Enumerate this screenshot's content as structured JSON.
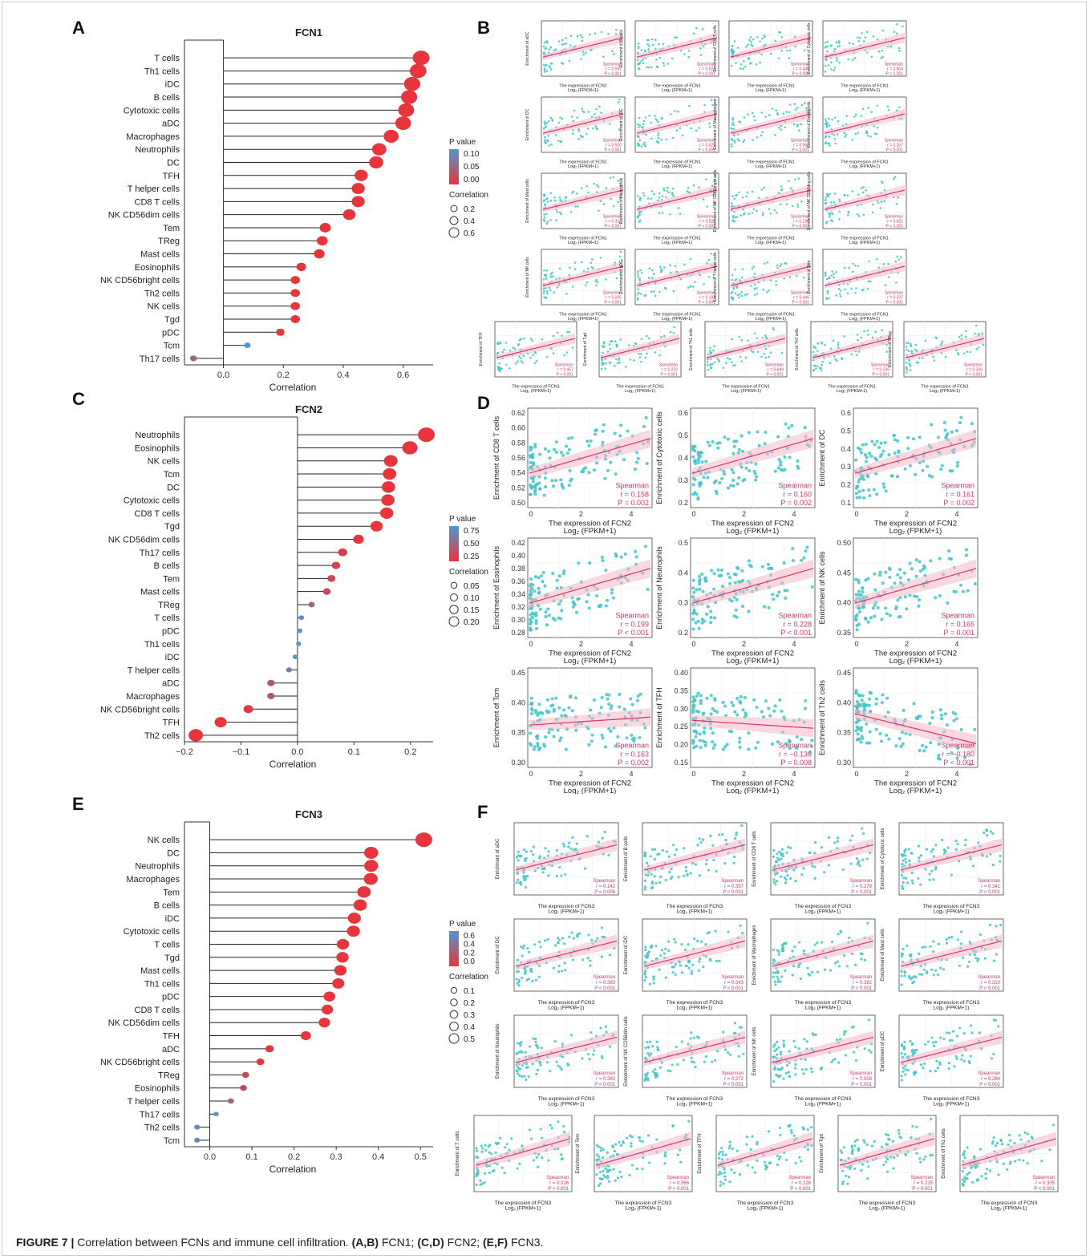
{
  "figure": {
    "caption_label": "FIGURE 7 |",
    "caption_text": "Correlation between FCNs and immune cell infiltration.",
    "caption_parts": [
      {
        "bold": "(A,B)",
        "text": " FCN1; "
      },
      {
        "bold": "(C,D)",
        "text": " FCN2; "
      },
      {
        "bold": "(E,F)",
        "text": " FCN3."
      }
    ]
  },
  "panel_letters": {
    "A": "A",
    "B": "B",
    "C": "C",
    "D": "D",
    "E": "E",
    "F": "F"
  },
  "colors": {
    "low_p": "#e8343a",
    "high_p": "#4f97d0",
    "mid_p": "#9a7e9e",
    "scatter_point": "#39c5c8",
    "fit_line": "#d6336c",
    "band": "#f3b8c8",
    "stat_text": "#d6336c"
  },
  "chart_data": [
    {
      "id": "A",
      "type": "lollipop",
      "title": "FCN1",
      "xlabel": "Correlation",
      "xlim": [
        -0.13,
        0.7
      ],
      "xticks": [
        0.0,
        0.2,
        0.4,
        0.6
      ],
      "xtick_labels": [
        "0.0",
        "0.2",
        "0.4",
        "0.6"
      ],
      "legend": {
        "p_title": "P value",
        "p_ticks": [
          "0.10",
          "0.05",
          "0.00"
        ],
        "size_title": "Correlation",
        "size_ticks": [
          "0.2",
          "0.4",
          "0.6"
        ]
      },
      "categories": [
        "T cells",
        "Th1 cells",
        "iDC",
        "B cells",
        "Cytotoxic cells",
        "aDC",
        "Macrophages",
        "Neutrophils",
        "DC",
        "TFH",
        "T helper cells",
        "CD8 T cells",
        "NK CD56dim cells",
        "Tem",
        "TReg",
        "Mast cells",
        "Eosinophils",
        "NK CD56bright cells",
        "Th2 cells",
        "NK cells",
        "Tgd",
        "pDC",
        "Tcm",
        "Th17 cells"
      ],
      "values": [
        0.66,
        0.65,
        0.63,
        0.62,
        0.61,
        0.6,
        0.56,
        0.52,
        0.51,
        0.46,
        0.45,
        0.45,
        0.42,
        0.34,
        0.33,
        0.32,
        0.26,
        0.24,
        0.24,
        0.24,
        0.24,
        0.19,
        0.08,
        -0.1
      ],
      "pvalues": [
        0,
        0,
        0,
        0,
        0,
        0,
        0,
        0,
        0,
        0,
        0,
        0,
        0,
        0,
        0,
        0,
        0,
        0,
        0,
        0,
        0,
        0,
        0.1,
        0.05
      ]
    },
    {
      "id": "C",
      "type": "lollipop",
      "title": "FCN2",
      "xlabel": "Correlation",
      "xlim": [
        -0.2,
        0.24
      ],
      "xticks": [
        -0.2,
        -0.1,
        0.0,
        0.1,
        0.2
      ],
      "xtick_labels": [
        "−0.2",
        "−0.1",
        "0.0",
        "0.1",
        "0.2"
      ],
      "legend": {
        "p_title": "P value",
        "p_ticks": [
          "0.75",
          "0.50",
          "0.25"
        ],
        "size_title": "Correlation",
        "size_ticks": [
          "0.05",
          "0.10",
          "0.15",
          "0.20"
        ]
      },
      "categories": [
        "Neutrophils",
        "Eosinophils",
        "NK cells",
        "Tcm",
        "DC",
        "Cytotoxic cells",
        "CD8 T cells",
        "Tgd",
        "NK CD56dim cells",
        "Th17 cells",
        "B cells",
        "Tem",
        "Mast cells",
        "TReg",
        "T cells",
        "pDC",
        "Th1 cells",
        "iDC",
        "T helper cells",
        "aDC",
        "Macrophages",
        "NK CD56bright cells",
        "TFH",
        "Th2 cells"
      ],
      "values": [
        0.228,
        0.199,
        0.165,
        0.163,
        0.161,
        0.16,
        0.158,
        0.14,
        0.108,
        0.08,
        0.068,
        0.06,
        0.052,
        0.025,
        0.007,
        0.004,
        0.002,
        -0.004,
        -0.015,
        -0.047,
        -0.047,
        -0.087,
        -0.136,
        -0.18
      ],
      "pvalues": [
        0,
        0,
        0.001,
        0.002,
        0.002,
        0.002,
        0.002,
        0.005,
        0.02,
        0.1,
        0.15,
        0.2,
        0.22,
        0.5,
        0.85,
        0.9,
        0.95,
        0.9,
        0.7,
        0.3,
        0.3,
        0.05,
        0.008,
        0
      ]
    },
    {
      "id": "E",
      "type": "lollipop",
      "title": "FCN3",
      "xlabel": "Correlation",
      "xlim": [
        -0.06,
        0.53
      ],
      "xticks": [
        0.0,
        0.1,
        0.2,
        0.3,
        0.4,
        0.5
      ],
      "xtick_labels": [
        "0.0",
        "0.1",
        "0.2",
        "0.3",
        "0.4",
        "0.5"
      ],
      "legend": {
        "p_title": "P value",
        "p_ticks": [
          "0.6",
          "0.4",
          "0.2",
          "0.0"
        ],
        "size_title": "Correlation",
        "size_ticks": [
          "0.1",
          "0.2",
          "0.3",
          "0.4",
          "0.5"
        ]
      },
      "categories": [
        "NK cells",
        "DC",
        "Neutrophils",
        "Macrophages",
        "Tem",
        "B cells",
        "iDC",
        "Cytotoxic cells",
        "T cells",
        "Tgd",
        "Mast cells",
        "Th1 cells",
        "pDC",
        "CD8 T cells",
        "NK CD56dim cells",
        "TFH",
        "aDC",
        "NK CD56bright cells",
        "TReg",
        "Eosinophils",
        "T helper cells",
        "Th17 cells",
        "Th2 cells",
        "Tcm"
      ],
      "values": [
        0.508,
        0.383,
        0.383,
        0.382,
        0.366,
        0.357,
        0.343,
        0.341,
        0.316,
        0.315,
        0.31,
        0.305,
        0.284,
        0.279,
        0.272,
        0.228,
        0.142,
        0.12,
        0.085,
        0.08,
        0.05,
        0.015,
        -0.03,
        -0.03
      ],
      "pvalues": [
        0,
        0,
        0,
        0,
        0,
        0,
        0,
        0,
        0,
        0,
        0,
        0,
        0,
        0,
        0,
        0,
        0.006,
        0.02,
        0.1,
        0.15,
        0.3,
        0.6,
        0.5,
        0.5
      ]
    },
    {
      "id": "B",
      "type": "scatter",
      "gene": "FCN1",
      "xlabel": "The expression of FCN1",
      "xlabel_sub": "Log₂ (FPKM+1)",
      "stat_title": "Spearman",
      "plots": [
        {
          "ylabel": "Enrichment of aDC",
          "r": "r = 0.592",
          "p": "P < 0.001"
        },
        {
          "ylabel": "Enrichment of B cells",
          "r": "r = 0.623",
          "p": "P < 0.001"
        },
        {
          "ylabel": "Enrichment of CD8 T cells",
          "r": "r = 0.445",
          "p": "P < 0.001"
        },
        {
          "ylabel": "Enrichment of Cytotoxic cells",
          "r": "r = 0.604",
          "p": "P < 0.001"
        },
        {
          "ylabel": "Enrichment of DC",
          "r": "r = 0.520",
          "p": "P < 0.001"
        },
        {
          "ylabel": "Enrichment of iDC",
          "r": "r = 0.625",
          "p": "P < 0.001"
        },
        {
          "ylabel": "Enrichment of Macrophages",
          "r": "r = 0.560",
          "p": "P < 0.001"
        },
        {
          "ylabel": "Enrichment of Eosinophils",
          "r": "r = 0.257",
          "p": "P < 0.001"
        },
        {
          "ylabel": "Enrichment of Mast cells",
          "r": "r = 0.316",
          "p": "P < 0.001"
        },
        {
          "ylabel": "Enrichment of Neutrophils",
          "r": "r = 0.526",
          "p": "P < 0.001"
        },
        {
          "ylabel": "Enrichment of NK CD56bright cells",
          "r": "r = 0.238",
          "p": "P < 0.001"
        },
        {
          "ylabel": "Enrichment of NK CD56dim cells",
          "r": "r = 0.421",
          "p": "P < 0.001"
        },
        {
          "ylabel": "Enrichment of NK cells",
          "r": "r = 0.235",
          "p": "P < 0.001"
        },
        {
          "ylabel": "Enrichment of pDC",
          "r": "r = 0.184",
          "p": "P < 0.001"
        },
        {
          "ylabel": "Enrichment of T helper cells",
          "r": "r = 0.446",
          "p": "P < 0.001"
        },
        {
          "ylabel": "Enrichment of Tem",
          "r": "r = 0.337",
          "p": "P < 0.001"
        },
        {
          "ylabel": "Enrichment of TFH",
          "r": "r = 0.457",
          "p": "P < 0.001"
        },
        {
          "ylabel": "Enrichment of Tgd",
          "r": "r = 0.232",
          "p": "P < 0.001"
        },
        {
          "ylabel": "Enrichment of Th1 cells",
          "r": "r = 0.649",
          "p": "P < 0.001"
        },
        {
          "ylabel": "Enrichment of Th2 cells",
          "r": "r = 0.236",
          "p": "P < 0.001"
        },
        {
          "ylabel": "Enrichment of TReg",
          "r": "r = 0.326",
          "p": "P < 0.001"
        }
      ]
    },
    {
      "id": "D",
      "type": "scatter",
      "gene": "FCN2",
      "xlabel": "The expression of FCN2",
      "xlabel_sub": "Log₂ (FPKM+1)",
      "stat_title": "Spearman",
      "plots": [
        {
          "ylabel": "Enrichment of CD8 T cells",
          "r": "r = 0.158",
          "p": "P = 0.002",
          "yticks": [
            "0.62",
            "0.60",
            "0.58",
            "0.56",
            "0.54",
            "0.52",
            "0.50"
          ],
          "slope": "up"
        },
        {
          "ylabel": "Enrichment of Cytotoxic cells",
          "r": "r = 0.160",
          "p": "P = 0.002",
          "yticks": [
            "0.6",
            "0.5",
            "0.4",
            "0.3",
            "0.2"
          ],
          "slope": "up"
        },
        {
          "ylabel": "Enrichment of DC",
          "r": "r = 0.161",
          "p": "P = 0.002",
          "yticks": [
            "0.6",
            "0.5",
            "0.4",
            "0.3",
            "0.2",
            "0.1"
          ],
          "slope": "up"
        },
        {
          "ylabel": "Enrichment of Eosinophils",
          "r": "r = 0.199",
          "p": "P < 0.001",
          "yticks": [
            "0.42",
            "0.40",
            "0.38",
            "0.36",
            "0.34",
            "0.32",
            "0.30",
            "0.28"
          ],
          "slope": "up"
        },
        {
          "ylabel": "Enrichment of Neutrophils",
          "r": "r = 0.228",
          "p": "P < 0.001",
          "yticks": [
            "0.5",
            "0.4",
            "0.3",
            "0.2"
          ],
          "slope": "up"
        },
        {
          "ylabel": "Enrichment of NK cells",
          "r": "r = 0.165",
          "p": "P = 0.001",
          "yticks": [
            "0.50",
            "0.45",
            "0.40",
            "0.35"
          ],
          "slope": "up"
        },
        {
          "ylabel": "Enrichment of Tcm",
          "r": "r = 0.163",
          "p": "P = 0.002",
          "yticks": [
            "0.45",
            "0.40",
            "0.35",
            "0.30"
          ],
          "slope": "flat"
        },
        {
          "ylabel": "Enrichment of TFH",
          "r": "r = −0.136",
          "p": "P = 0.008",
          "yticks": [
            "0.40",
            "0.35",
            "0.30",
            "0.25",
            "0.20",
            "0.15"
          ],
          "slope": "flatdown"
        },
        {
          "ylabel": "Enrichment of Th2 cells",
          "r": "r = −0.180",
          "p": "P < 0.001",
          "yticks": [
            "0.45",
            "0.40",
            "0.35",
            "0.30"
          ],
          "slope": "down"
        }
      ],
      "xticks": [
        "0",
        "2",
        "4"
      ]
    },
    {
      "id": "F",
      "type": "scatter",
      "gene": "FCN3",
      "xlabel": "The expression of FCN3",
      "xlabel_sub": "Log₂ (FPKM+1)",
      "stat_title": "Spearman",
      "plots": [
        {
          "ylabel": "Enrichment of aDC",
          "r": "r = 0.142",
          "p": "P = 0.006"
        },
        {
          "ylabel": "Enrichment of B cells",
          "r": "r = 0.357",
          "p": "P < 0.001"
        },
        {
          "ylabel": "Enrichment of CD8 T cells",
          "r": "r = 0.279",
          "p": "P < 0.001"
        },
        {
          "ylabel": "Enrichment of Cytotoxic cells",
          "r": "r = 0.341",
          "p": "P < 0.001"
        },
        {
          "ylabel": "Enrichment of DC",
          "r": "r = 0.383",
          "p": "P < 0.001"
        },
        {
          "ylabel": "Enrichment of iDC",
          "r": "r = 0.343",
          "p": "P < 0.001"
        },
        {
          "ylabel": "Enrichment of Macrophages",
          "r": "r = 0.382",
          "p": "P < 0.001"
        },
        {
          "ylabel": "Enrichment of Mast cells",
          "r": "r = 0.310",
          "p": "P < 0.001"
        },
        {
          "ylabel": "Enrichment of Neutrophils",
          "r": "r = 0.383",
          "p": "P < 0.001"
        },
        {
          "ylabel": "Enrichment of NK CD56dim cells",
          "r": "r = 0.272",
          "p": "P < 0.001"
        },
        {
          "ylabel": "Enrichment of NK cells",
          "r": "r = 0.508",
          "p": "P < 0.001"
        },
        {
          "ylabel": "Enrichment of pDC",
          "r": "r = 0.284",
          "p": "P < 0.001"
        },
        {
          "ylabel": "Enrichment of T cells",
          "r": "r = 0.316",
          "p": "P < 0.001"
        },
        {
          "ylabel": "Enrichment of Tem",
          "r": "r = 0.366",
          "p": "P < 0.001"
        },
        {
          "ylabel": "Enrichment of TFH",
          "r": "r = 0.228",
          "p": "P < 0.001"
        },
        {
          "ylabel": "Enrichment of Tgd",
          "r": "r = 0.315",
          "p": "P < 0.001"
        },
        {
          "ylabel": "Enrichment of Th1 cells",
          "r": "r = 0.305",
          "p": "P < 0.001"
        }
      ]
    }
  ]
}
